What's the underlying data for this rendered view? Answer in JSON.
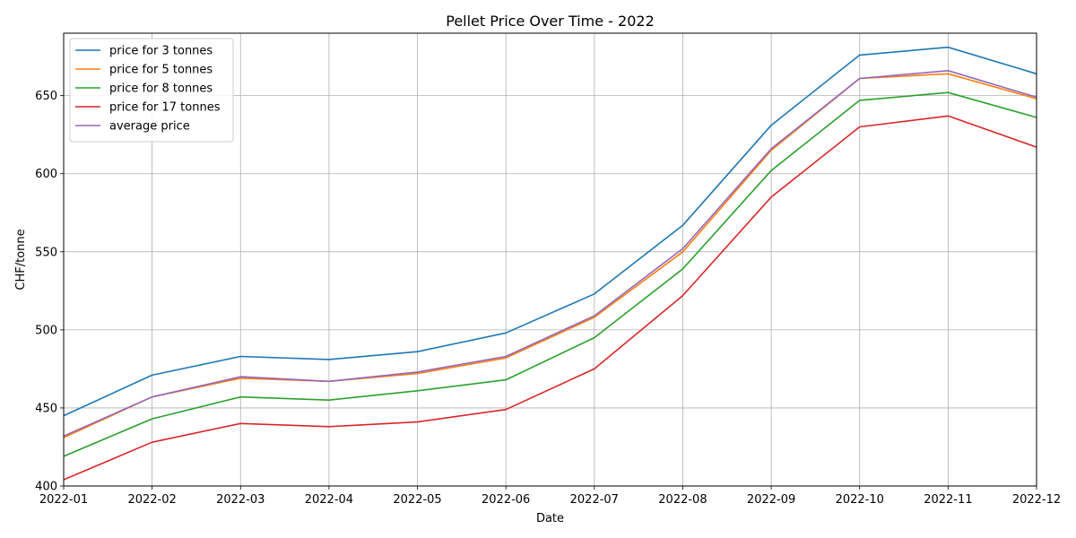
{
  "chart_data": {
    "type": "line",
    "title": "Pellet Price Over Time - 2022",
    "xlabel": "Date",
    "ylabel": "CHF/tonne",
    "x": [
      "2022-01",
      "2022-02",
      "2022-03",
      "2022-04",
      "2022-05",
      "2022-06",
      "2022-07",
      "2022-08",
      "2022-09",
      "2022-10",
      "2022-11",
      "2022-12"
    ],
    "ylim": [
      400,
      690
    ],
    "yticks": [
      400,
      450,
      500,
      550,
      600,
      650
    ],
    "grid": true,
    "legend_position": "top-left",
    "series": [
      {
        "name": "price for 3 tonnes",
        "color": "#1f77b4",
        "values": [
          445,
          471,
          483,
          481,
          486,
          498,
          523,
          567,
          631,
          676,
          681,
          664
        ]
      },
      {
        "name": "price for 5 tonnes",
        "color": "#ff7f0e",
        "values": [
          431,
          457,
          469,
          467,
          472,
          482,
          508,
          550,
          615,
          661,
          664,
          648
        ]
      },
      {
        "name": "price for 8 tonnes",
        "color": "#2ca02c",
        "values": [
          419,
          443,
          457,
          455,
          461,
          468,
          495,
          539,
          602,
          647,
          652,
          636
        ]
      },
      {
        "name": "price for 17 tonnes",
        "color": "#d62728",
        "values": [
          404,
          428,
          440,
          438,
          441,
          449,
          475,
          522,
          585,
          630,
          637,
          617
        ]
      },
      {
        "name": "average price",
        "color": "#9467bd",
        "values": [
          432,
          457,
          470,
          467,
          473,
          483,
          509,
          552,
          616,
          661,
          666,
          649
        ]
      }
    ]
  }
}
